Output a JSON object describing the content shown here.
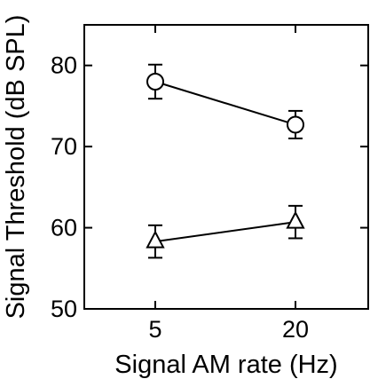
{
  "chart_data": {
    "type": "line",
    "xlabel": "Signal AM rate (Hz)",
    "ylabel": "Signal Threshold (dB SPL)",
    "categories": [
      "5",
      "20"
    ],
    "ylim": [
      50,
      85
    ],
    "yticks": [
      50,
      60,
      70,
      80
    ],
    "grid": false,
    "series": [
      {
        "marker": "circle",
        "values": [
          78,
          72.7
        ],
        "errors": [
          2.1,
          1.7
        ]
      },
      {
        "marker": "triangle",
        "values": [
          58.3,
          60.7
        ],
        "errors": [
          2.0,
          2.0
        ]
      }
    ]
  }
}
